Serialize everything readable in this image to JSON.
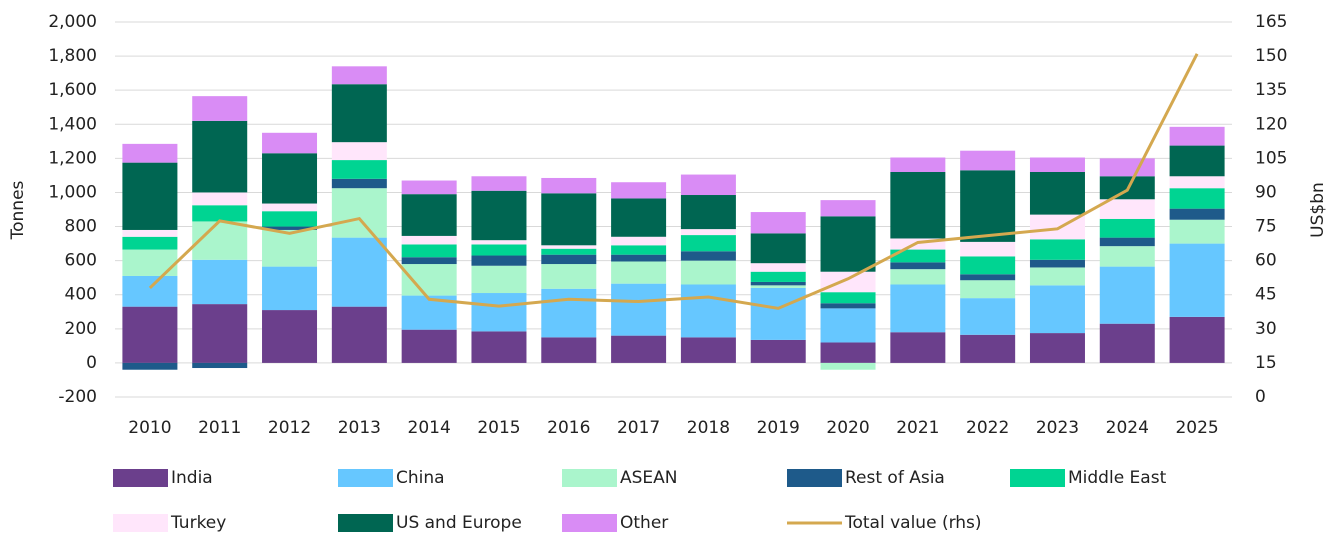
{
  "chart_data": {
    "type": "bar",
    "stacked": true,
    "categories": [
      "2010",
      "2011",
      "2012",
      "2013",
      "2014",
      "2015",
      "2016",
      "2017",
      "2018",
      "2019",
      "2020",
      "2021",
      "2022",
      "2023",
      "2024",
      "2025"
    ],
    "ylabel": "Tonnes",
    "y2label": "US$bn",
    "ylim": [
      -200,
      2000
    ],
    "yticks": [
      -200,
      0,
      200,
      400,
      600,
      800,
      {
        "value": 1000,
        "label": "1,000"
      },
      {
        "value": 1200,
        "label": "1,200"
      },
      {
        "value": 1400,
        "label": "1,400"
      },
      {
        "value": 1600,
        "label": "1,600"
      },
      {
        "value": 1800,
        "label": "1,800"
      },
      {
        "value": 2000,
        "label": "2,000"
      }
    ],
    "y2lim": [
      0,
      165
    ],
    "y2ticks": [
      0,
      15,
      30,
      45,
      60,
      75,
      90,
      105,
      120,
      135,
      150,
      165
    ],
    "grid": true,
    "series": [
      {
        "name": "India",
        "color": "#6b3f8c",
        "values": [
          330,
          345,
          310,
          330,
          195,
          185,
          150,
          160,
          150,
          135,
          120,
          180,
          165,
          175,
          230,
          270
        ]
      },
      {
        "name": "China",
        "color": "#66c7ff",
        "values": [
          180,
          260,
          255,
          405,
          200,
          225,
          285,
          305,
          310,
          305,
          200,
          280,
          215,
          280,
          335,
          430
        ]
      },
      {
        "name": "ASEAN",
        "color": "#aaf5cc",
        "values": [
          155,
          225,
          215,
          290,
          185,
          160,
          145,
          130,
          140,
          15,
          -40,
          90,
          105,
          105,
          120,
          140
        ]
      },
      {
        "name": "Rest of Asia",
        "color": "#1e5a8a",
        "values": [
          -40,
          -30,
          20,
          55,
          40,
          60,
          55,
          40,
          55,
          20,
          30,
          40,
          35,
          45,
          50,
          65
        ]
      },
      {
        "name": "Middle East",
        "color": "#00d492",
        "values": [
          75,
          95,
          90,
          110,
          75,
          65,
          35,
          55,
          95,
          60,
          65,
          75,
          105,
          120,
          110,
          120
        ]
      },
      {
        "name": "Turkey",
        "color": "#ffe6fb",
        "values": [
          40,
          75,
          45,
          105,
          50,
          25,
          20,
          50,
          35,
          50,
          120,
          65,
          85,
          145,
          115,
          70
        ]
      },
      {
        "name": "US and Europe",
        "color": "#006652",
        "values": [
          395,
          420,
          295,
          340,
          245,
          290,
          305,
          225,
          200,
          175,
          325,
          390,
          420,
          250,
          135,
          180
        ]
      },
      {
        "name": "Other",
        "color": "#d98cf5",
        "values": [
          110,
          145,
          120,
          105,
          80,
          85,
          90,
          95,
          120,
          125,
          95,
          85,
          115,
          85,
          105,
          110
        ]
      },
      {
        "name": "Total value (rhs)",
        "type": "line",
        "axis": "y2",
        "color": "#d4a84f",
        "values": [
          48,
          77.5,
          72,
          78.5,
          43,
          40,
          43,
          42,
          44,
          39,
          52,
          68,
          71,
          74,
          91,
          151
        ]
      }
    ]
  }
}
